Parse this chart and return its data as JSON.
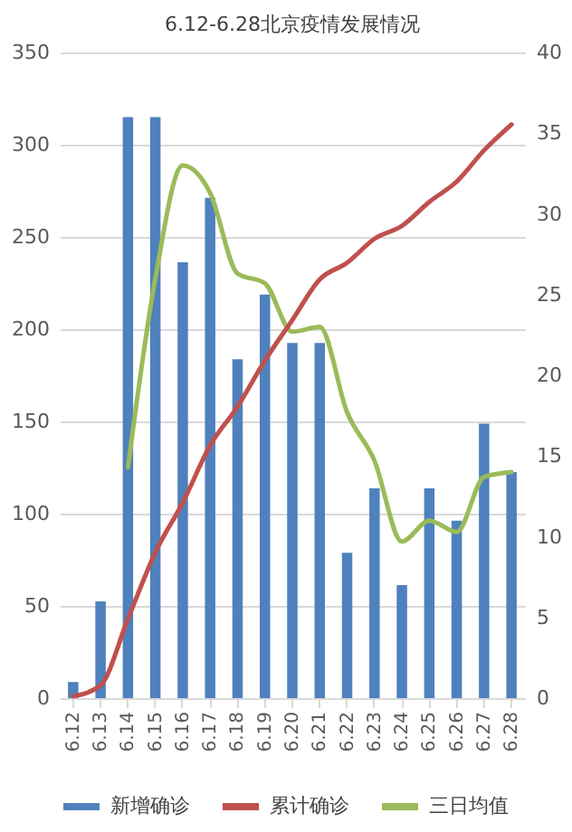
{
  "chart_data": {
    "type": "bar",
    "title": "6.12-6.28北京疫情发展情况",
    "categories": [
      "6.12",
      "6.13",
      "6.14",
      "6.15",
      "6.16",
      "6.17",
      "6.18",
      "6.19",
      "6.20",
      "6.21",
      "6.22",
      "6.23",
      "6.24",
      "6.25",
      "6.26",
      "6.27",
      "6.28"
    ],
    "series": [
      {
        "name": "新增确诊",
        "axis": "y2",
        "color": "#4f81bd",
        "values": [
          1,
          6,
          36,
          36,
          27,
          31,
          21,
          25,
          22,
          22,
          9,
          13,
          7,
          13,
          11,
          17,
          14
        ]
      },
      {
        "name": "累计确诊",
        "type": "line",
        "color": "#c0504d",
        "values": [
          1,
          7,
          43,
          79,
          106,
          137,
          158,
          183,
          205,
          227,
          236,
          249,
          256,
          269,
          280,
          297,
          311
        ]
      },
      {
        "name": "三日均值",
        "type": "line",
        "axis": "y2",
        "color": "#9bbb59",
        "values": [
          null,
          null,
          14.3,
          26,
          33,
          31.3,
          26.3,
          25.7,
          22.7,
          23,
          17.7,
          14.7,
          9.7,
          11,
          10.3,
          13.7,
          14
        ]
      }
    ],
    "ylim": [
      0,
      350
    ],
    "yticks": [
      0,
      50,
      100,
      150,
      200,
      250,
      300,
      350
    ],
    "y2lim": [
      0,
      40
    ],
    "y2ticks": [
      0,
      5,
      10,
      15,
      20,
      25,
      30,
      35,
      40
    ],
    "grid": "y",
    "legend": "bottom"
  }
}
